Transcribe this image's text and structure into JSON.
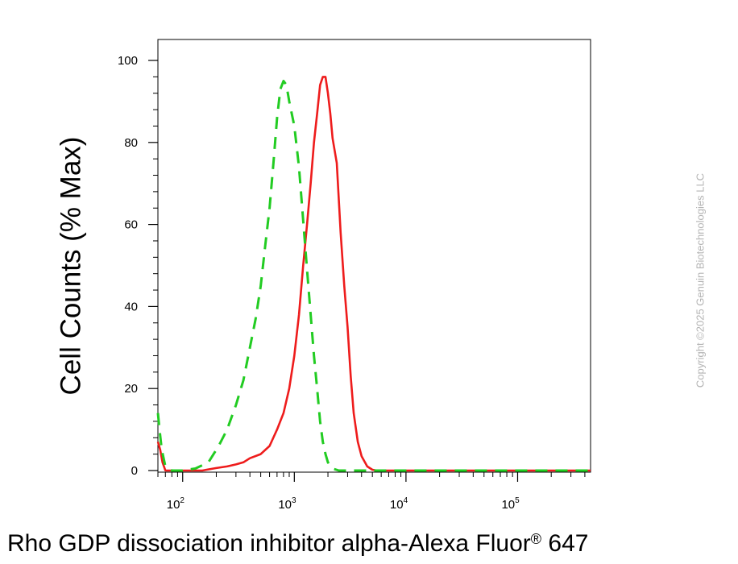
{
  "chart_data": {
    "type": "line",
    "xscale": "log",
    "xlim": [
      60,
      450000
    ],
    "ylim": [
      0,
      100
    ],
    "yticks": [
      0,
      20,
      40,
      60,
      80,
      100
    ],
    "xticks": [
      {
        "value": 100,
        "base": "10",
        "exp": "2"
      },
      {
        "value": 1000,
        "base": "10",
        "exp": "3"
      },
      {
        "value": 10000,
        "base": "10",
        "exp": "4"
      },
      {
        "value": 100000,
        "base": "10",
        "exp": "5"
      }
    ],
    "ylabel": "Cell Counts (% Max)",
    "xlabel": "Rho GDP dissociation inhibitor alpha-Alexa Fluor",
    "xlabel_mark": "®",
    "xlabel_suffix": " 647",
    "grid": false,
    "series": [
      {
        "color": "#ee1c1c",
        "style": "solid",
        "points": [
          [
            60,
            7
          ],
          [
            63,
            5
          ],
          [
            66,
            2
          ],
          [
            70,
            0
          ],
          [
            80,
            0
          ],
          [
            100,
            0
          ],
          [
            150,
            0
          ],
          [
            200,
            0.6
          ],
          [
            250,
            1
          ],
          [
            300,
            1.5
          ],
          [
            350,
            2
          ],
          [
            400,
            3
          ],
          [
            500,
            4
          ],
          [
            600,
            6
          ],
          [
            700,
            10
          ],
          [
            800,
            14
          ],
          [
            900,
            20
          ],
          [
            1000,
            28
          ],
          [
            1100,
            38
          ],
          [
            1200,
            50
          ],
          [
            1300,
            60
          ],
          [
            1400,
            70
          ],
          [
            1500,
            80
          ],
          [
            1600,
            87
          ],
          [
            1700,
            94
          ],
          [
            1800,
            96
          ],
          [
            1900,
            96
          ],
          [
            2000,
            92
          ],
          [
            2100,
            87
          ],
          [
            2200,
            81
          ],
          [
            2400,
            75
          ],
          [
            2600,
            58
          ],
          [
            2800,
            45
          ],
          [
            3000,
            35
          ],
          [
            3200,
            23
          ],
          [
            3400,
            14
          ],
          [
            3700,
            7
          ],
          [
            4000,
            3.5
          ],
          [
            4500,
            1
          ],
          [
            5000,
            0.2
          ],
          [
            5500,
            0
          ],
          [
            10000,
            0
          ],
          [
            100000,
            0
          ],
          [
            450000,
            0
          ]
        ]
      },
      {
        "color": "#22cc22",
        "style": "dashed",
        "points": [
          [
            60,
            14
          ],
          [
            62,
            10
          ],
          [
            65,
            5
          ],
          [
            70,
            1
          ],
          [
            80,
            0
          ],
          [
            100,
            0
          ],
          [
            130,
            0.5
          ],
          [
            170,
            2
          ],
          [
            210,
            6
          ],
          [
            250,
            10
          ],
          [
            300,
            16
          ],
          [
            350,
            22
          ],
          [
            400,
            30
          ],
          [
            450,
            37
          ],
          [
            500,
            45
          ],
          [
            550,
            55
          ],
          [
            600,
            64
          ],
          [
            650,
            75
          ],
          [
            700,
            86
          ],
          [
            750,
            93
          ],
          [
            800,
            95
          ],
          [
            850,
            94
          ],
          [
            900,
            90
          ],
          [
            1000,
            84
          ],
          [
            1100,
            74
          ],
          [
            1200,
            61
          ],
          [
            1300,
            49
          ],
          [
            1400,
            38
          ],
          [
            1500,
            28
          ],
          [
            1600,
            20
          ],
          [
            1700,
            12
          ],
          [
            1800,
            7
          ],
          [
            1900,
            4
          ],
          [
            2000,
            2
          ],
          [
            2200,
            0.5
          ],
          [
            2500,
            0
          ],
          [
            10000,
            0
          ],
          [
            100000,
            0
          ],
          [
            450000,
            0
          ]
        ]
      }
    ]
  },
  "watermark": {
    "text": "Copyright ©2025 Genuin Biotechnologies LLC"
  }
}
